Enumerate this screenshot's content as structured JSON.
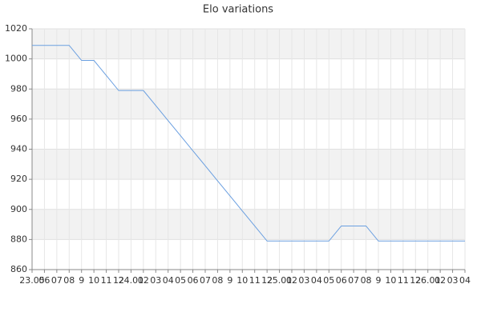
{
  "chart_data": {
    "type": "line",
    "title": "Elo variations",
    "categories": [
      "23.05",
      "06",
      "07",
      "08",
      "9",
      "10",
      "11",
      "12",
      "24.01",
      "02",
      "03",
      "04",
      "05",
      "06",
      "07",
      "08",
      "9",
      "10",
      "11",
      "12",
      "25.01",
      "02",
      "03",
      "04",
      "05",
      "06",
      "07",
      "08",
      "9",
      "10",
      "11",
      "12",
      "26.01",
      "02",
      "03",
      "04"
    ],
    "values": [
      1009,
      1009,
      1009,
      1009,
      999,
      999,
      989,
      979,
      979,
      979,
      969,
      959,
      949,
      939,
      929,
      919,
      909,
      899,
      889,
      879,
      879,
      879,
      879,
      879,
      879,
      889,
      889,
      889,
      879,
      879,
      879,
      879,
      879,
      879,
      879,
      879
    ],
    "color": "#6a9fe0",
    "ylim": [
      860,
      1020
    ],
    "yticks": [
      860,
      880,
      900,
      920,
      940,
      960,
      980,
      1000,
      1020
    ],
    "grid": true
  }
}
